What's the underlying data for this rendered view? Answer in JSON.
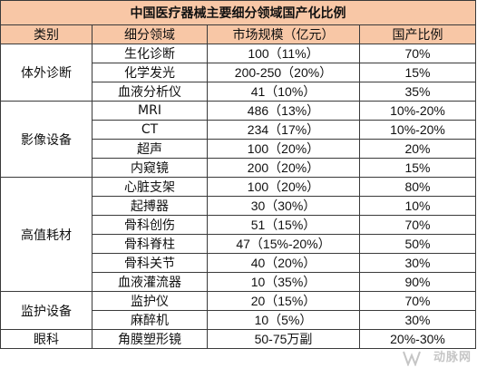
{
  "title": "中国医疗器械主要细分领域国产化比例",
  "headers": [
    "类别",
    "细分领域",
    "市场规模（亿元）",
    "国产比例"
  ],
  "groups": [
    {
      "category": "体外诊断",
      "rows": [
        {
          "field": "生化诊断",
          "market": "100（11%）",
          "ratio": "70%"
        },
        {
          "field": "化学发光",
          "market": "200-250（20%）",
          "ratio": "15%"
        },
        {
          "field": "血液分析仪",
          "market": "41（10%）",
          "ratio": "35%"
        }
      ]
    },
    {
      "category": "影像设备",
      "rows": [
        {
          "field": "MRI",
          "market": "486（13%）",
          "ratio": "10%-20%"
        },
        {
          "field": "CT",
          "market": "234（17%）",
          "ratio": "10%-20%"
        },
        {
          "field": "超声",
          "market": "100（20%）",
          "ratio": "20%"
        },
        {
          "field": "内窥镜",
          "market": "200（20%）",
          "ratio": "15%"
        }
      ]
    },
    {
      "category": "高值耗材",
      "rows": [
        {
          "field": "心脏支架",
          "market": "100（20%）",
          "ratio": "80%"
        },
        {
          "field": "起搏器",
          "market": "30（30%）",
          "ratio": "10%"
        },
        {
          "field": "骨科创伤",
          "market": "51（15%）",
          "ratio": "70%"
        },
        {
          "field": "骨科脊柱",
          "market": "47（15%-20%）",
          "ratio": "50%"
        },
        {
          "field": "骨科关节",
          "market": "40（20%）",
          "ratio": "30%"
        },
        {
          "field": "血液灌流器",
          "market": "10（35%）",
          "ratio": "90%"
        }
      ]
    },
    {
      "category": "监护设备",
      "rows": [
        {
          "field": "监护仪",
          "market": "20（15%）",
          "ratio": "70%"
        },
        {
          "field": "麻醉机",
          "market": "10（5%）",
          "ratio": "30%"
        }
      ]
    },
    {
      "category": "眼科",
      "rows": [
        {
          "field": "角膜塑形镜",
          "market": "50-75万副",
          "ratio": "20%-30%"
        }
      ]
    }
  ],
  "watermark": "动脉网",
  "colors": {
    "header_bg": "#f8c7a6",
    "title_text": "#d0221c",
    "border": "#3a3a3a"
  }
}
